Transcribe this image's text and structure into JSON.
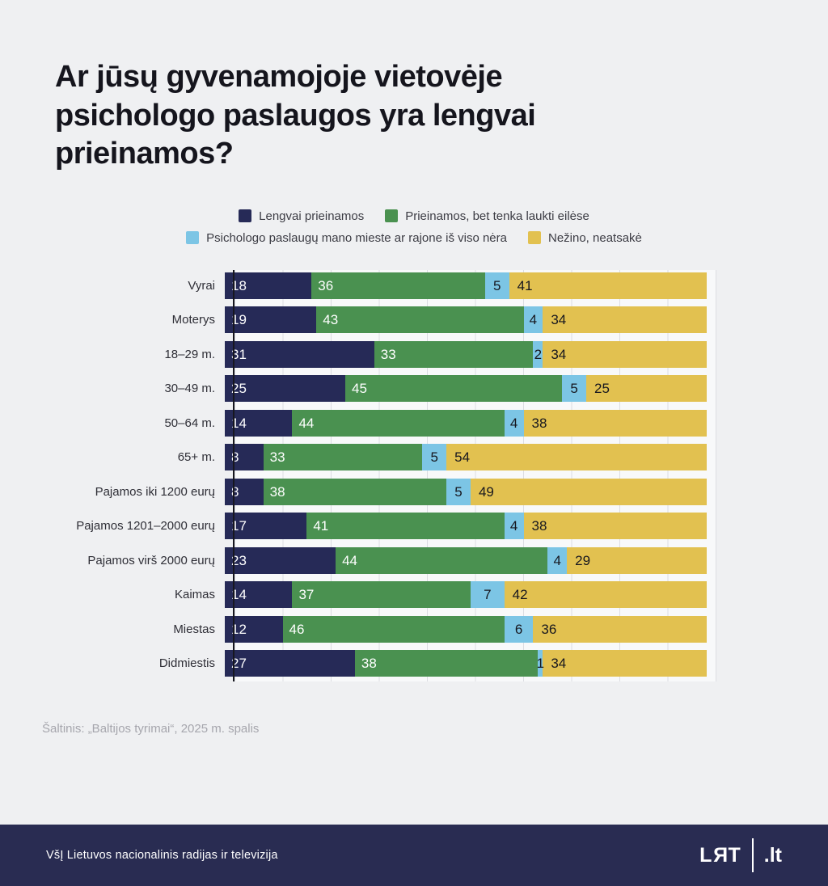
{
  "title_lines": [
    "Ar jūsų gyvenamojoje vietovėje",
    "psichologo paslaugos yra lengvai",
    "prieinamos?"
  ],
  "legend": [
    {
      "label": "Lengvai prieinamos",
      "color": "#262a57"
    },
    {
      "label": "Prieinamos, bet tenka laukti eilėse",
      "color": "#4a9150"
    },
    {
      "label": "Psichologo paslaugų mano mieste ar rajone iš viso nėra",
      "color": "#7cc5e5"
    },
    {
      "label": "Nežino, neatsakė",
      "color": "#e2c150"
    }
  ],
  "chart_data": {
    "type": "bar",
    "stacked": true,
    "orientation": "horizontal",
    "title": "Ar jūsų gyvenamojoje vietovėje psichologo paslaugos yra lengvai prieinamos?",
    "xlim": [
      0,
      100
    ],
    "grid": "vertical gridlines every 10 units",
    "legend_position": "top-center",
    "categories": [
      "Vyrai",
      "Moterys",
      "18–29 m.",
      "30–49 m.",
      "50–64 m.",
      "65+ m.",
      "Pajamos iki 1200 eurų",
      "Pajamos 1201–2000 eurų",
      "Pajamos virš 2000 eurų",
      "Kaimas",
      "Miestas",
      "Didmiestis"
    ],
    "series": [
      {
        "key": "easy",
        "name": "Lengvai prieinamos",
        "color": "#262a57",
        "values": [
          18,
          19,
          31,
          25,
          14,
          8,
          8,
          17,
          23,
          14,
          12,
          27
        ]
      },
      {
        "key": "wait",
        "name": "Prieinamos, bet tenka laukti eilėse",
        "color": "#4a9150",
        "values": [
          36,
          43,
          33,
          45,
          44,
          33,
          38,
          41,
          44,
          37,
          46,
          38
        ]
      },
      {
        "key": "none",
        "name": "Psichologo paslaugų mano mieste ar rajone iš viso nėra",
        "color": "#7cc5e5",
        "values": [
          5,
          4,
          2,
          5,
          4,
          5,
          5,
          4,
          4,
          7,
          6,
          1
        ]
      },
      {
        "key": "unknown",
        "name": "Nežino, neatsakė",
        "color": "#e2c150",
        "values": [
          41,
          34,
          34,
          25,
          38,
          54,
          49,
          38,
          29,
          42,
          36,
          34
        ]
      }
    ]
  },
  "source": "Šaltinis: „Baltijos tyrimai“, 2025 m. spalis",
  "footer": {
    "text": "VšĮ Lietuvos nacionalinis radijas ir televizija",
    "logo_main": "LRT",
    "logo_suffix": ".lt"
  }
}
